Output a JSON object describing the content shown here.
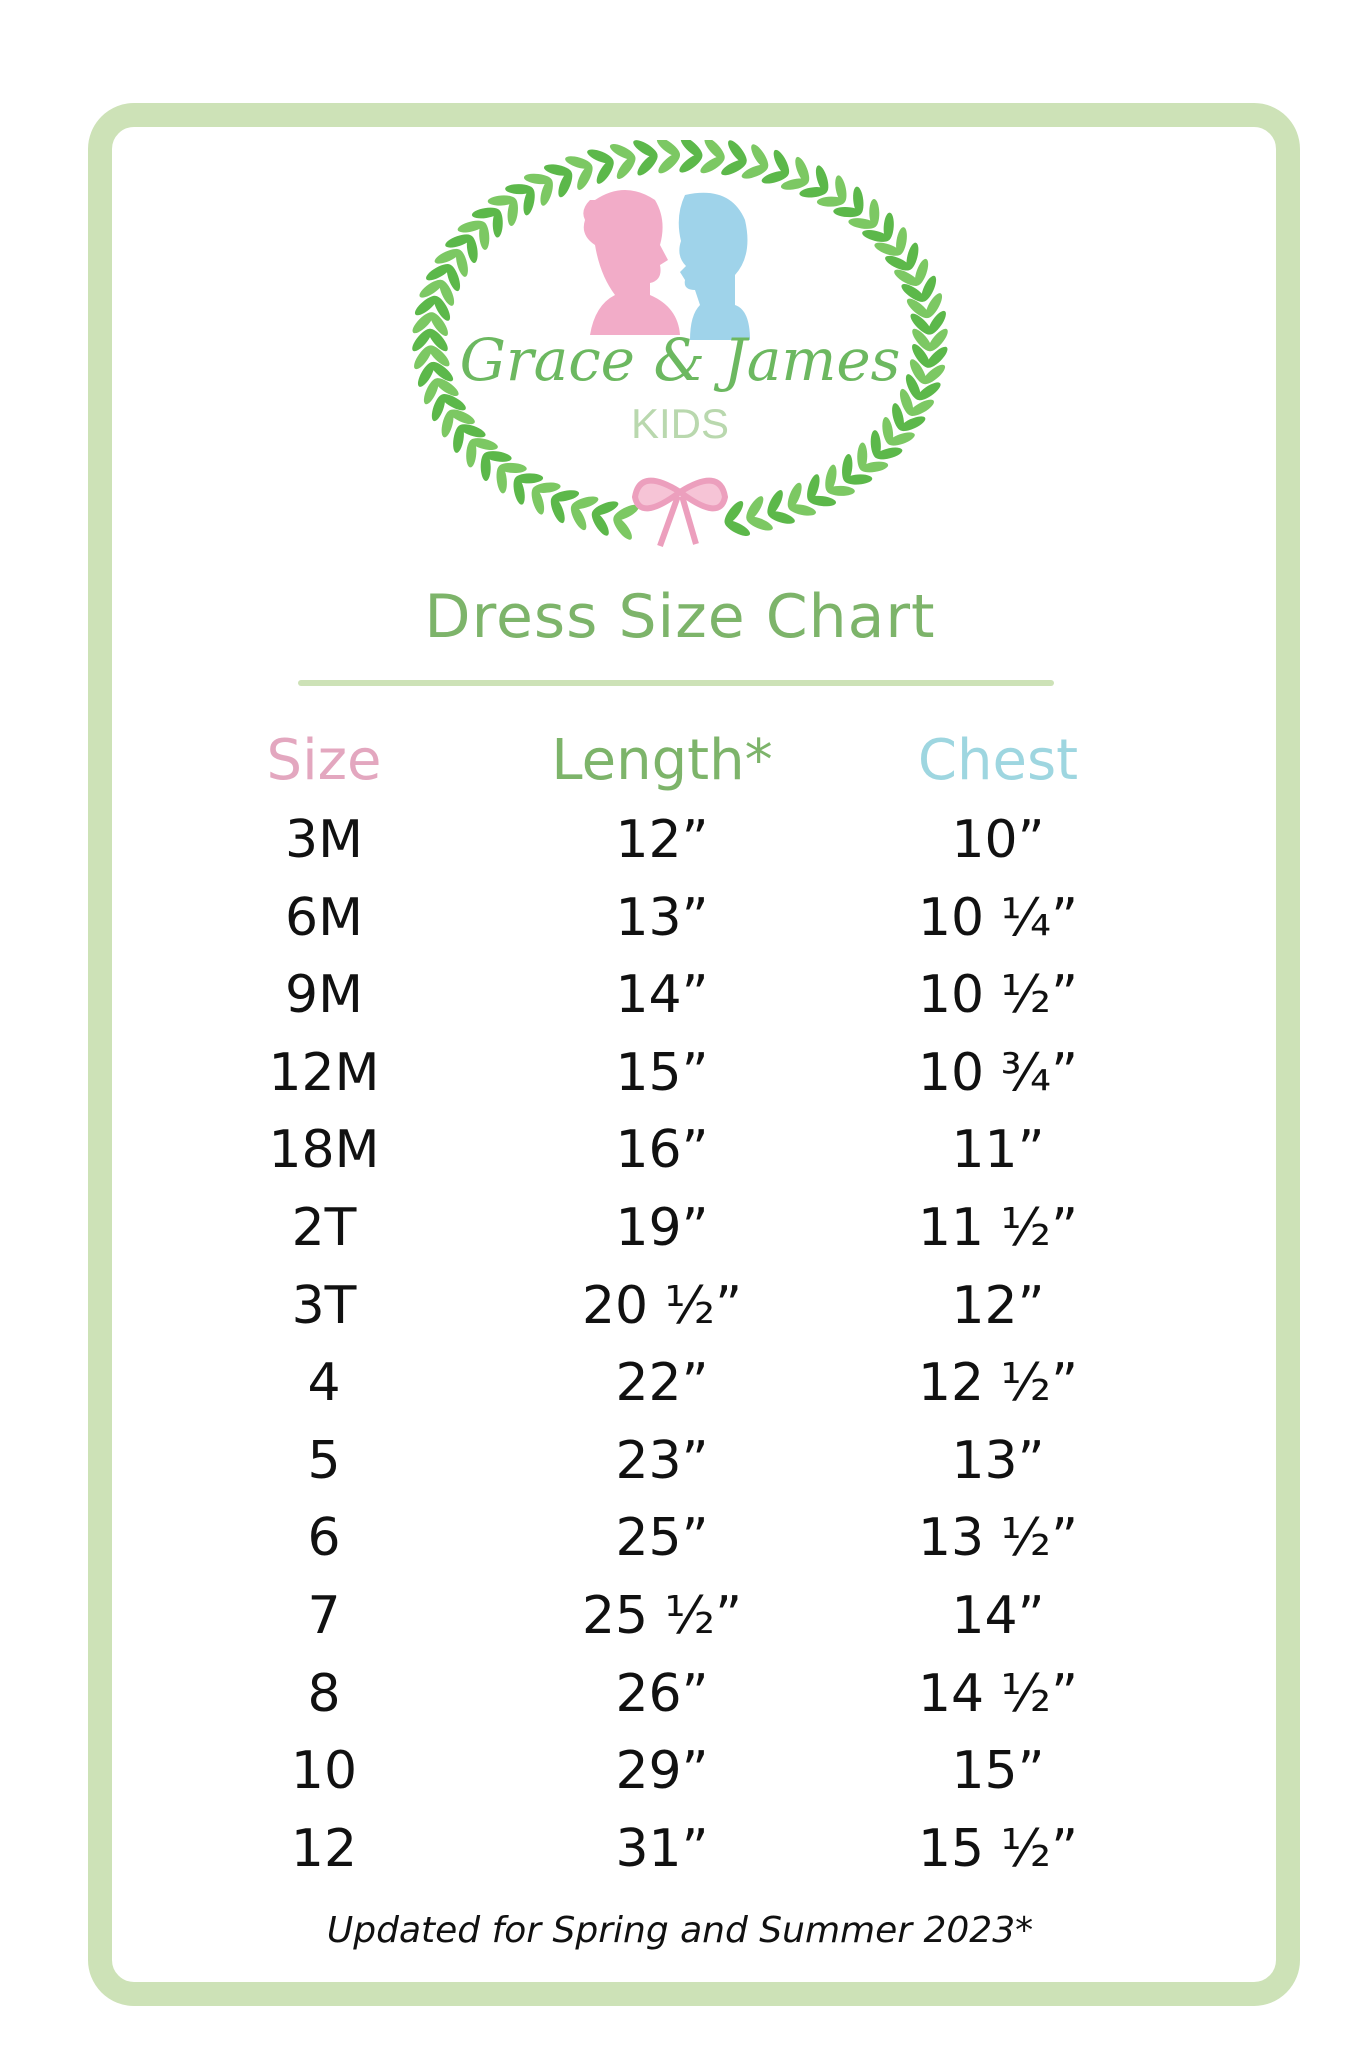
{
  "brand": {
    "name": "Grace & James",
    "sub": "KIDS"
  },
  "title": "Dress Size Chart",
  "colors": {
    "border": "#cde2b7",
    "green": "#7db46a",
    "pink": "#e3a7bf",
    "blue": "#9ed6e0",
    "leaf": "#5cb84a"
  },
  "table": {
    "headers": [
      "Size",
      "Length*",
      "Chest"
    ],
    "rows": [
      [
        "3M",
        "12”",
        "10”"
      ],
      [
        "6M",
        "13”",
        "10 ¼”"
      ],
      [
        "9M",
        "14”",
        "10 ½”"
      ],
      [
        "12M",
        "15”",
        "10 ¾”"
      ],
      [
        "18M",
        "16”",
        "11”"
      ],
      [
        "2T",
        "19”",
        "11 ½”"
      ],
      [
        "3T",
        "20 ½”",
        "12”"
      ],
      [
        "4",
        "22”",
        "12 ½”"
      ],
      [
        "5",
        "23”",
        "13”"
      ],
      [
        "6",
        "25”",
        "13 ½”"
      ],
      [
        "7",
        "25 ½”",
        "14”"
      ],
      [
        "8",
        "26”",
        "14 ½”"
      ],
      [
        "10",
        "29”",
        "15”"
      ],
      [
        "12",
        "31”",
        "15 ½”"
      ]
    ]
  },
  "footer": "Updated for Spring and Summer 2023*"
}
